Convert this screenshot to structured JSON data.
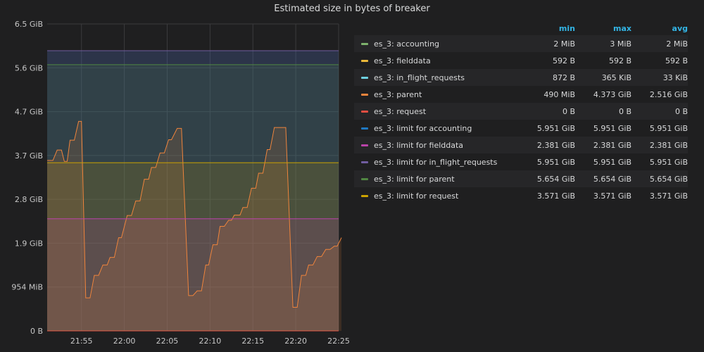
{
  "panel": {
    "title": "Estimated size in bytes of breaker"
  },
  "legend": {
    "headers": {
      "min": "min",
      "max": "max",
      "avg": "avg"
    },
    "rows": [
      {
        "name": "es_3: accounting",
        "color": "#7eb26d",
        "min": "2 MiB",
        "max": "3 MiB",
        "avg": "2 MiB"
      },
      {
        "name": "es_3: fielddata",
        "color": "#eab839",
        "min": "592 B",
        "max": "592 B",
        "avg": "592 B"
      },
      {
        "name": "es_3: in_flight_requests",
        "color": "#6ed0e0",
        "min": "872 B",
        "max": "365 KiB",
        "avg": "33 KiB"
      },
      {
        "name": "es_3: parent",
        "color": "#ef843c",
        "min": "490 MiB",
        "max": "4.373 GiB",
        "avg": "2.516 GiB"
      },
      {
        "name": "es_3: request",
        "color": "#e24d42",
        "min": "0 B",
        "max": "0 B",
        "avg": "0 B"
      },
      {
        "name": "es_3: limit for accounting",
        "color": "#1f78c1",
        "min": "5.951 GiB",
        "max": "5.951 GiB",
        "avg": "5.951 GiB"
      },
      {
        "name": "es_3: limit for fielddata",
        "color": "#ba43a9",
        "min": "2.381 GiB",
        "max": "2.381 GiB",
        "avg": "2.381 GiB"
      },
      {
        "name": "es_3: limit for in_flight_requests",
        "color": "#705da0",
        "min": "5.951 GiB",
        "max": "5.951 GiB",
        "avg": "5.951 GiB"
      },
      {
        "name": "es_3: limit for parent",
        "color": "#508642",
        "min": "5.654 GiB",
        "max": "5.654 GiB",
        "avg": "5.654 GiB"
      },
      {
        "name": "es_3: limit for request",
        "color": "#cca300",
        "min": "3.571 GiB",
        "max": "3.571 GiB",
        "avg": "3.571 GiB"
      }
    ]
  },
  "chart_data": {
    "type": "area",
    "title": "Estimated size in bytes of breaker",
    "x_unit": "minutes",
    "xlim": [
      "21:51",
      "22:25"
    ],
    "x_ticks": [
      "21:55",
      "22:00",
      "22:05",
      "22:10",
      "22:15",
      "22:20",
      "22:25"
    ],
    "ylim": [
      0,
      6.5
    ],
    "y_unit": "GiB",
    "y_ticks": [
      {
        "v": 0,
        "label": "0 B"
      },
      {
        "v": 0.9313,
        "label": "954 MiB"
      },
      {
        "v": 1.8626,
        "label": "1.9 GiB"
      },
      {
        "v": 2.794,
        "label": "2.8 GiB"
      },
      {
        "v": 3.7253,
        "label": "3.7 GiB"
      },
      {
        "v": 4.6566,
        "label": "4.7 GiB"
      },
      {
        "v": 5.5879,
        "label": "5.6 GiB"
      },
      {
        "v": 6.5193,
        "label": "6.5 GiB"
      }
    ],
    "grid": true,
    "legend_position": "right",
    "series": [
      {
        "name": "es_3: accounting",
        "color": "#7eb26d",
        "constant": 0.002
      },
      {
        "name": "es_3: fielddata",
        "color": "#eab839",
        "constant": 6e-07
      },
      {
        "name": "es_3: in_flight_requests",
        "color": "#6ed0e0",
        "constant": 3e-05
      },
      {
        "name": "es_3: parent",
        "color": "#ef843c",
        "points": [
          [
            "21:51:00",
            3.62
          ],
          [
            "21:51:40",
            3.62
          ],
          [
            "21:52:10",
            3.84
          ],
          [
            "21:52:40",
            3.84
          ],
          [
            "21:53:00",
            3.6
          ],
          [
            "21:53:20",
            3.6
          ],
          [
            "21:53:40",
            4.05
          ],
          [
            "21:54:10",
            4.05
          ],
          [
            "21:54:40",
            4.45
          ],
          [
            "21:55:00",
            4.45
          ],
          [
            "21:55:30",
            0.7
          ],
          [
            "21:56:00",
            0.7
          ],
          [
            "21:56:30",
            1.18
          ],
          [
            "21:57:00",
            1.18
          ],
          [
            "21:57:30",
            1.4
          ],
          [
            "21:58:00",
            1.4
          ],
          [
            "21:58:20",
            1.56
          ],
          [
            "21:58:50",
            1.56
          ],
          [
            "21:59:20",
            1.98
          ],
          [
            "21:59:40",
            1.98
          ],
          [
            "22:00:20",
            2.45
          ],
          [
            "22:00:50",
            2.45
          ],
          [
            "22:01:20",
            2.76
          ],
          [
            "22:01:50",
            2.76
          ],
          [
            "22:02:20",
            3.22
          ],
          [
            "22:02:50",
            3.22
          ],
          [
            "22:03:10",
            3.47
          ],
          [
            "22:03:40",
            3.47
          ],
          [
            "22:04:10",
            3.78
          ],
          [
            "22:04:40",
            3.78
          ],
          [
            "22:05:10",
            4.06
          ],
          [
            "22:05:30",
            4.06
          ],
          [
            "22:06:10",
            4.3
          ],
          [
            "22:06:40",
            4.3
          ],
          [
            "22:07:30",
            0.75
          ],
          [
            "22:08:00",
            0.75
          ],
          [
            "22:08:30",
            0.85
          ],
          [
            "22:09:00",
            0.85
          ],
          [
            "22:09:30",
            1.4
          ],
          [
            "22:09:50",
            1.4
          ],
          [
            "22:10:20",
            1.83
          ],
          [
            "22:10:50",
            1.83
          ],
          [
            "22:11:10",
            2.22
          ],
          [
            "22:11:40",
            2.22
          ],
          [
            "22:12:10",
            2.35
          ],
          [
            "22:12:30",
            2.35
          ],
          [
            "22:12:50",
            2.46
          ],
          [
            "22:13:30",
            2.46
          ],
          [
            "22:13:50",
            2.62
          ],
          [
            "22:14:20",
            2.62
          ],
          [
            "22:14:50",
            3.03
          ],
          [
            "22:15:20",
            3.03
          ],
          [
            "22:15:40",
            3.35
          ],
          [
            "22:16:10",
            3.35
          ],
          [
            "22:16:40",
            3.85
          ],
          [
            "22:17:00",
            3.85
          ],
          [
            "22:17:30",
            4.32
          ],
          [
            "22:18:50",
            4.32
          ],
          [
            "22:19:40",
            0.5
          ],
          [
            "22:20:10",
            0.5
          ],
          [
            "22:20:40",
            1.18
          ],
          [
            "22:21:10",
            1.18
          ],
          [
            "22:21:30",
            1.4
          ],
          [
            "22:22:00",
            1.4
          ],
          [
            "22:22:30",
            1.58
          ],
          [
            "22:23:00",
            1.58
          ],
          [
            "22:23:30",
            1.73
          ],
          [
            "22:24:00",
            1.73
          ],
          [
            "22:24:30",
            1.8
          ],
          [
            "22:24:50",
            1.8
          ],
          [
            "22:25:20",
            1.98
          ]
        ]
      },
      {
        "name": "es_3: request",
        "color": "#e24d42",
        "constant": 0
      },
      {
        "name": "es_3: limit for accounting",
        "color": "#1f78c1",
        "constant": 5.951
      },
      {
        "name": "es_3: limit for fielddata",
        "color": "#ba43a9",
        "constant": 2.381
      },
      {
        "name": "es_3: limit for in_flight_requests",
        "color": "#705da0",
        "constant": 5.951
      },
      {
        "name": "es_3: limit for parent",
        "color": "#508642",
        "constant": 5.654
      },
      {
        "name": "es_3: limit for request",
        "color": "#cca300",
        "constant": 3.571
      }
    ]
  }
}
